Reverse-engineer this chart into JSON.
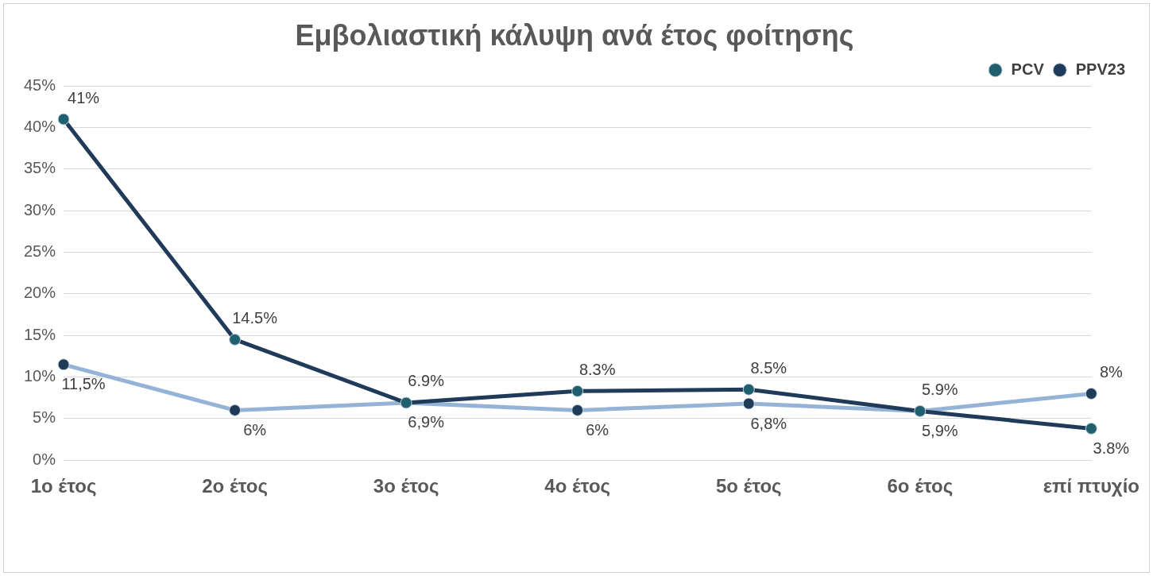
{
  "chart_data": {
    "type": "line",
    "title": "Εμβολιαστική κάλυψη ανά έτος φοίτησης",
    "categories": [
      "1ο έτος",
      "2ο έτος",
      "3ο έτος",
      "4ο έτος",
      "5ο έτος",
      "6ο έτος",
      "επί πτυχίο"
    ],
    "series": [
      {
        "name": "PCV",
        "color": "#203a5a",
        "values": [
          41,
          14.5,
          6.9,
          8.3,
          8.5,
          5.9,
          3.8
        ],
        "value_labels": [
          "41%",
          "14.5%",
          "6.9%",
          "8.3%",
          "8.5%",
          "5.9%",
          "3.8%"
        ]
      },
      {
        "name": "PPV23",
        "color": "#95b3d7",
        "values": [
          11.5,
          6,
          6.9,
          6,
          6.8,
          5.9,
          8
        ],
        "value_labels": [
          "11,5%",
          "6%",
          "6,9%",
          "6%",
          "6,8%",
          "5,9%",
          "8%"
        ]
      }
    ],
    "ylim": [
      0,
      45
    ],
    "yticks": [
      {
        "value": 0,
        "label": "0%"
      },
      {
        "value": 5,
        "label": "5%"
      },
      {
        "value": 10,
        "label": "10%"
      },
      {
        "value": 15,
        "label": "15%"
      },
      {
        "value": 20,
        "label": "20%"
      },
      {
        "value": 25,
        "label": "25%"
      },
      {
        "value": 30,
        "label": "30%"
      },
      {
        "value": 35,
        "label": "35%"
      },
      {
        "value": 40,
        "label": "40%"
      },
      {
        "value": 45,
        "label": "45%"
      }
    ],
    "grid": "y",
    "legend": "top right",
    "marker": "circle",
    "line_style": "solid"
  }
}
